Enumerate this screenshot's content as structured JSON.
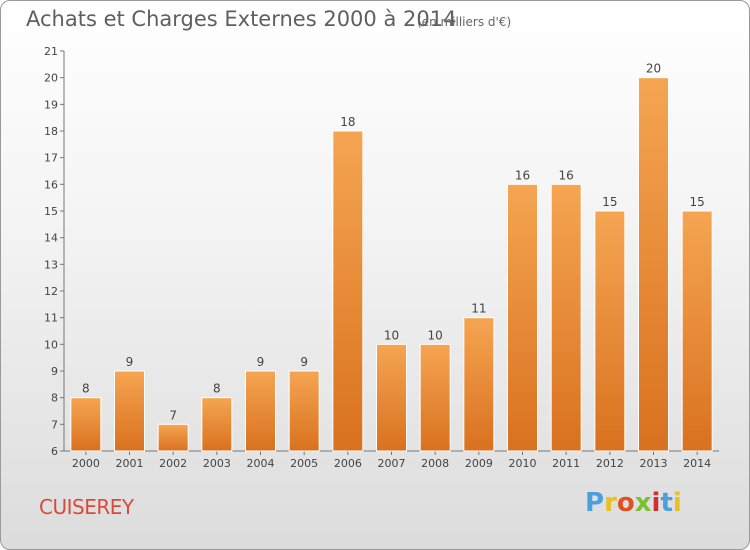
{
  "chart_data": {
    "type": "bar",
    "title": "Achats et Charges Externes 2000 à 2014",
    "subtitle": "(en milliers d'€)",
    "categories": [
      "2000",
      "2001",
      "2002",
      "2003",
      "2004",
      "2005",
      "2006",
      "2007",
      "2008",
      "2009",
      "2010",
      "2011",
      "2012",
      "2013",
      "2014"
    ],
    "values": [
      8,
      9,
      7,
      8,
      9,
      9,
      18,
      10,
      10,
      11,
      16,
      16,
      15,
      20,
      15
    ],
    "ylim": [
      6,
      21
    ],
    "yticks": [
      6,
      7,
      8,
      9,
      10,
      11,
      12,
      13,
      14,
      15,
      16,
      17,
      18,
      19,
      20,
      21
    ],
    "grid": false,
    "bar_color_top": "#f5a552",
    "bar_color_bottom": "#d9711f"
  },
  "footer": {
    "commune": "CUISEREY",
    "logo_letters": [
      "P",
      "r",
      "o",
      "x",
      "i",
      "t",
      "i"
    ],
    "logo_colors": [
      "#4a9fe0",
      "#e8c020",
      "#e05020",
      "#7cc030",
      "#d03030",
      "#4a9fe0",
      "#e8c020"
    ]
  }
}
